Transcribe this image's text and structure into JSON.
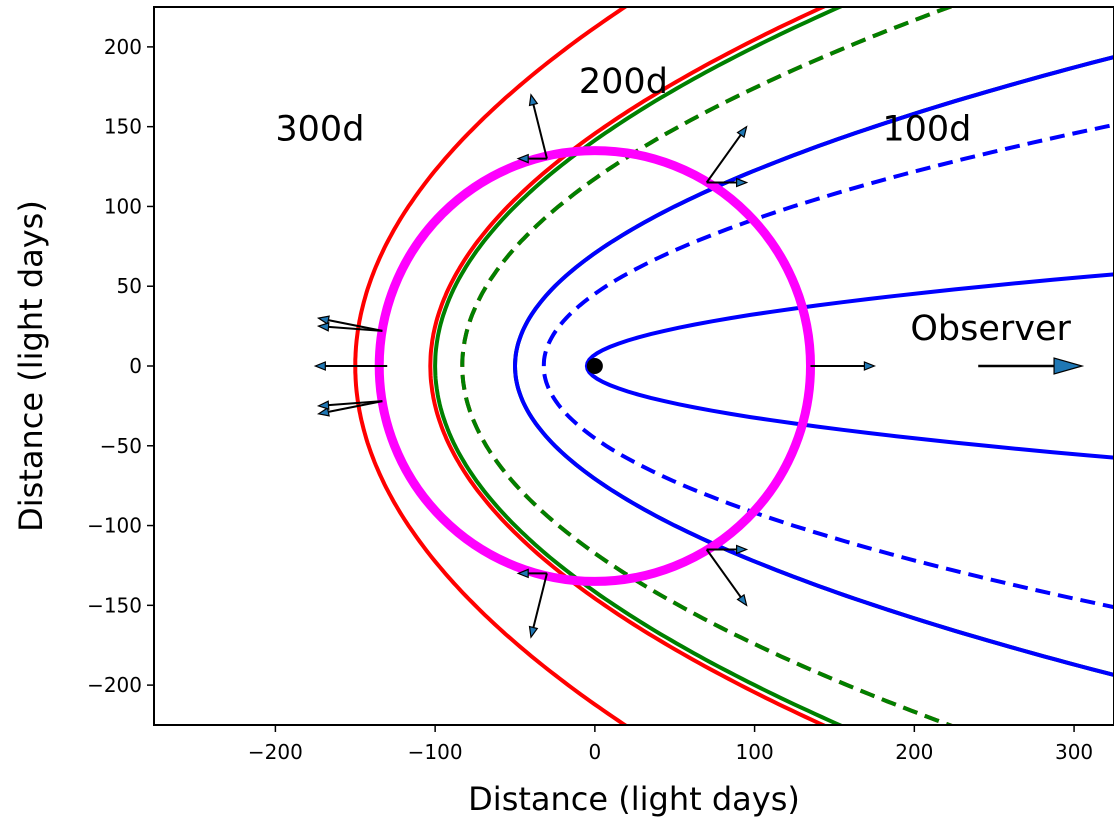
{
  "chart_data": {
    "type": "line",
    "title": "",
    "xlabel": "Distance (light days)",
    "ylabel": "Distance (light days)",
    "xlim": [
      -276,
      325
    ],
    "ylim": [
      -225,
      225
    ],
    "xticks": [
      -200,
      -100,
      0,
      100,
      200,
      300
    ],
    "yticks": [
      -200,
      -150,
      -100,
      -50,
      0,
      50,
      100,
      150,
      200
    ],
    "xtick_labels": [
      "−200",
      "−100",
      "0",
      "100",
      "200",
      "300"
    ],
    "ytick_labels": [
      "−200",
      "−150",
      "−100",
      "−50",
      "0",
      "50",
      "100",
      "150",
      "200"
    ],
    "grid": false,
    "series": [
      {
        "color": "#ff0000",
        "style": "solid",
        "vertex_x": -150,
        "c": 300
      },
      {
        "color": "#ff0000",
        "style": "solid",
        "vertex_x": -103,
        "c": 206
      },
      {
        "color": "#ff0000",
        "style": "dashed",
        "vertex_x": -83,
        "c": 166
      },
      {
        "color": "#008000",
        "style": "solid",
        "vertex_x": -100,
        "c": 200
      },
      {
        "color": "#008000",
        "style": "solid",
        "vertex_x": -50,
        "c": 100
      },
      {
        "color": "#008000",
        "style": "dashed",
        "vertex_x": -83,
        "c": 166
      },
      {
        "color": "#0000ff",
        "style": "solid",
        "vertex_x": -50,
        "c": 100
      },
      {
        "color": "#0000ff",
        "style": "solid",
        "vertex_x": -5,
        "c": 10
      },
      {
        "color": "#0000ff",
        "style": "dashed",
        "vertex_x": -32,
        "c": 64
      }
    ],
    "ring": {
      "color": "#ff00ff",
      "radius": 135,
      "center": [
        0,
        0
      ]
    },
    "source_point": {
      "x": 0,
      "y": 0,
      "color": "#000000"
    },
    "vectors": [
      {
        "x0": 135,
        "y0": 0,
        "x1": 175,
        "y1": 0
      },
      {
        "x0": -130,
        "y0": 0,
        "x1": -175,
        "y1": 0
      },
      {
        "x0": -133,
        "y0": 22,
        "x1": -173,
        "y1": 30
      },
      {
        "x0": -133,
        "y0": 22,
        "x1": -173,
        "y1": 25
      },
      {
        "x0": -133,
        "y0": -22,
        "x1": -173,
        "y1": -30
      },
      {
        "x0": -133,
        "y0": -22,
        "x1": -173,
        "y1": -25
      },
      {
        "x0": -30,
        "y0": 130,
        "x1": -48,
        "y1": 130
      },
      {
        "x0": -30,
        "y0": 130,
        "x1": -40,
        "y1": 170
      },
      {
        "x0": -30,
        "y0": -130,
        "x1": -48,
        "y1": -130
      },
      {
        "x0": -30,
        "y0": -130,
        "x1": -40,
        "y1": -170
      },
      {
        "x0": 70,
        "y0": 115,
        "x1": 95,
        "y1": 150
      },
      {
        "x0": 70,
        "y0": 115,
        "x1": 95,
        "y1": 115
      },
      {
        "x0": 70,
        "y0": -115,
        "x1": 95,
        "y1": -150
      },
      {
        "x0": 70,
        "y0": -115,
        "x1": 95,
        "y1": -115
      }
    ],
    "observer_arrow": {
      "x0": 240,
      "y0": 0,
      "x1": 305,
      "y1": 0,
      "color": "#1f77b4"
    },
    "annotations": [
      {
        "text": "300d",
        "x": -200,
        "y": 150
      },
      {
        "text": "200d",
        "x": -10,
        "y": 180
      },
      {
        "text": "100d",
        "x": 180,
        "y": 150
      },
      {
        "text": "Observer",
        "x": 200,
        "y": 25
      }
    ]
  }
}
